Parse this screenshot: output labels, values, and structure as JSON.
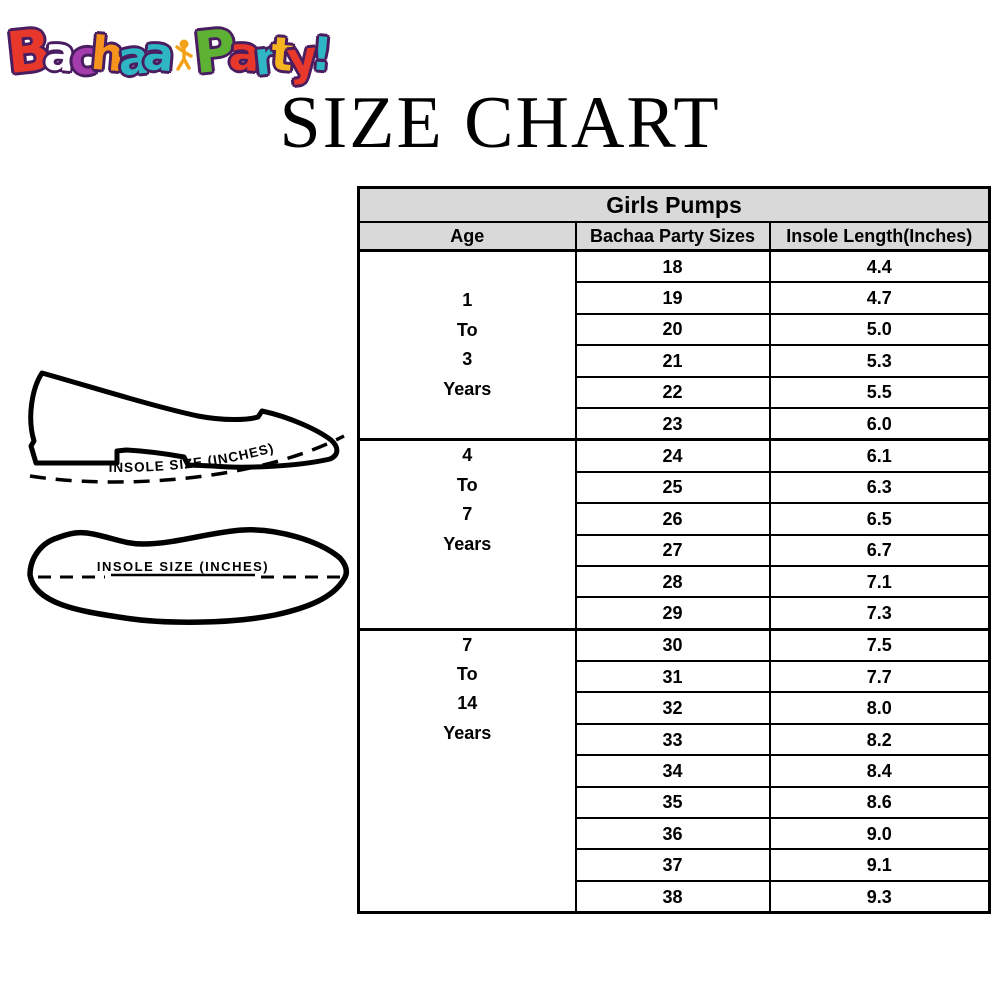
{
  "logo": {
    "bachaa_letters": [
      {
        "ch": "B",
        "color": "#e8382b"
      },
      {
        "ch": "a",
        "color": "#ffffff"
      },
      {
        "ch": "c",
        "color": "#a43dab"
      },
      {
        "ch": "h",
        "color": "#f6921e"
      },
      {
        "ch": "a",
        "color": "#2fb6c5"
      },
      {
        "ch": "a",
        "color": "#2fb6c5"
      }
    ],
    "party_letters": [
      {
        "ch": "P",
        "color": "#5db233"
      },
      {
        "ch": "a",
        "color": "#e8382b"
      },
      {
        "ch": "r",
        "color": "#2fb6c5"
      },
      {
        "ch": "t",
        "color": "#f6b41f"
      },
      {
        "ch": "y",
        "color": "#e8382b"
      },
      {
        "ch": "!",
        "color": "#2fb6c5"
      }
    ],
    "outline_color": "#4a1d60",
    "figure_color": "#f5a21b"
  },
  "title": "SIZE CHART",
  "table": {
    "title": "Girls Pumps",
    "columns": [
      "Age",
      "Bachaa Party Sizes",
      "Insole Length(Inches)"
    ],
    "header_bg": "#d9d9d9",
    "groups": [
      {
        "age_lines": [
          "1",
          "To",
          "3",
          "Years"
        ],
        "age_valign": "center",
        "rows": [
          [
            "18",
            "4.4"
          ],
          [
            "19",
            "4.7"
          ],
          [
            "20",
            "5.0"
          ],
          [
            "21",
            "5.3"
          ],
          [
            "22",
            "5.5"
          ],
          [
            "23",
            "6.0"
          ]
        ]
      },
      {
        "age_lines": [
          "4",
          "To",
          "7",
          "Years"
        ],
        "age_valign": "top",
        "rows": [
          [
            "24",
            "6.1"
          ],
          [
            "25",
            "6.3"
          ],
          [
            "26",
            "6.5"
          ],
          [
            "27",
            "6.7"
          ],
          [
            "28",
            "7.1"
          ],
          [
            "29",
            "7.3"
          ]
        ]
      },
      {
        "age_lines": [
          "7",
          "To",
          "14",
          "Years"
        ],
        "age_valign": "top",
        "rows": [
          [
            "30",
            "7.5"
          ],
          [
            "31",
            "7.7"
          ],
          [
            "32",
            "8.0"
          ],
          [
            "33",
            "8.2"
          ],
          [
            "34",
            "8.4"
          ],
          [
            "35",
            "8.6"
          ],
          [
            "36",
            "9.0"
          ],
          [
            "37",
            "9.1"
          ],
          [
            "38",
            "9.3"
          ]
        ]
      }
    ]
  },
  "illustrations": {
    "side_view_label": "INSOLE SIZE (INCHES)",
    "sole_label": "INSOLE SIZE (INCHES)"
  },
  "chart_data": {
    "type": "table",
    "title": "Girls Pumps",
    "columns": [
      "Age",
      "Bachaa Party Sizes",
      "Insole Length(Inches)"
    ],
    "groups": [
      {
        "age": "1 To 3 Years",
        "sizes": [
          18,
          19,
          20,
          21,
          22,
          23
        ],
        "insole_inches": [
          4.4,
          4.7,
          5.0,
          5.3,
          5.5,
          6.0
        ]
      },
      {
        "age": "4 To 7 Years",
        "sizes": [
          24,
          25,
          26,
          27,
          28,
          29
        ],
        "insole_inches": [
          6.1,
          6.3,
          6.5,
          6.7,
          7.1,
          7.3
        ]
      },
      {
        "age": "7 To 14 Years",
        "sizes": [
          30,
          31,
          32,
          33,
          34,
          35,
          36,
          37,
          38
        ],
        "insole_inches": [
          7.5,
          7.7,
          8.0,
          8.2,
          8.4,
          8.6,
          9.0,
          9.1,
          9.3
        ]
      }
    ]
  }
}
